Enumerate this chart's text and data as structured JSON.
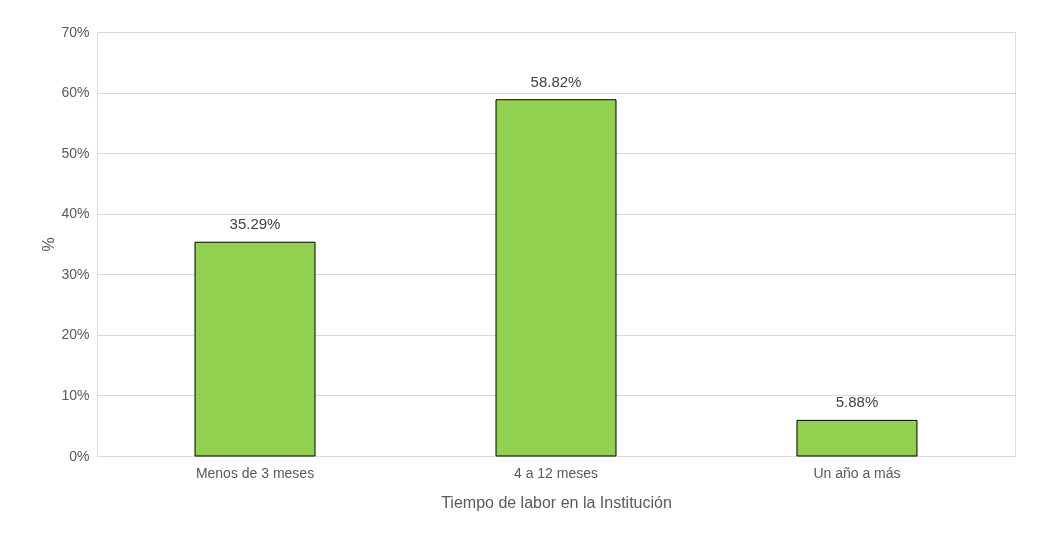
{
  "chart_data": {
    "type": "bar",
    "xlabel": "Tiempo de labor en la Institución",
    "ylabel": "%",
    "categories": [
      "Menos de 3 meses",
      "4 a 12 meses",
      "Un año a más"
    ],
    "values": [
      35.29,
      58.82,
      5.88
    ],
    "value_labels": [
      "35.29%",
      "58.82%",
      "5.88%"
    ],
    "color": "#92d050",
    "ylim": [
      0,
      70
    ],
    "yticks": [
      {
        "value": 0,
        "label": "0%"
      },
      {
        "value": 10,
        "label": "10%"
      },
      {
        "value": 20,
        "label": "20%"
      },
      {
        "value": 30,
        "label": "30%"
      },
      {
        "value": 40,
        "label": "40%"
      },
      {
        "value": 50,
        "label": "50%"
      },
      {
        "value": 60,
        "label": "60%"
      },
      {
        "value": 70,
        "label": "70%"
      }
    ],
    "grid": "y"
  }
}
